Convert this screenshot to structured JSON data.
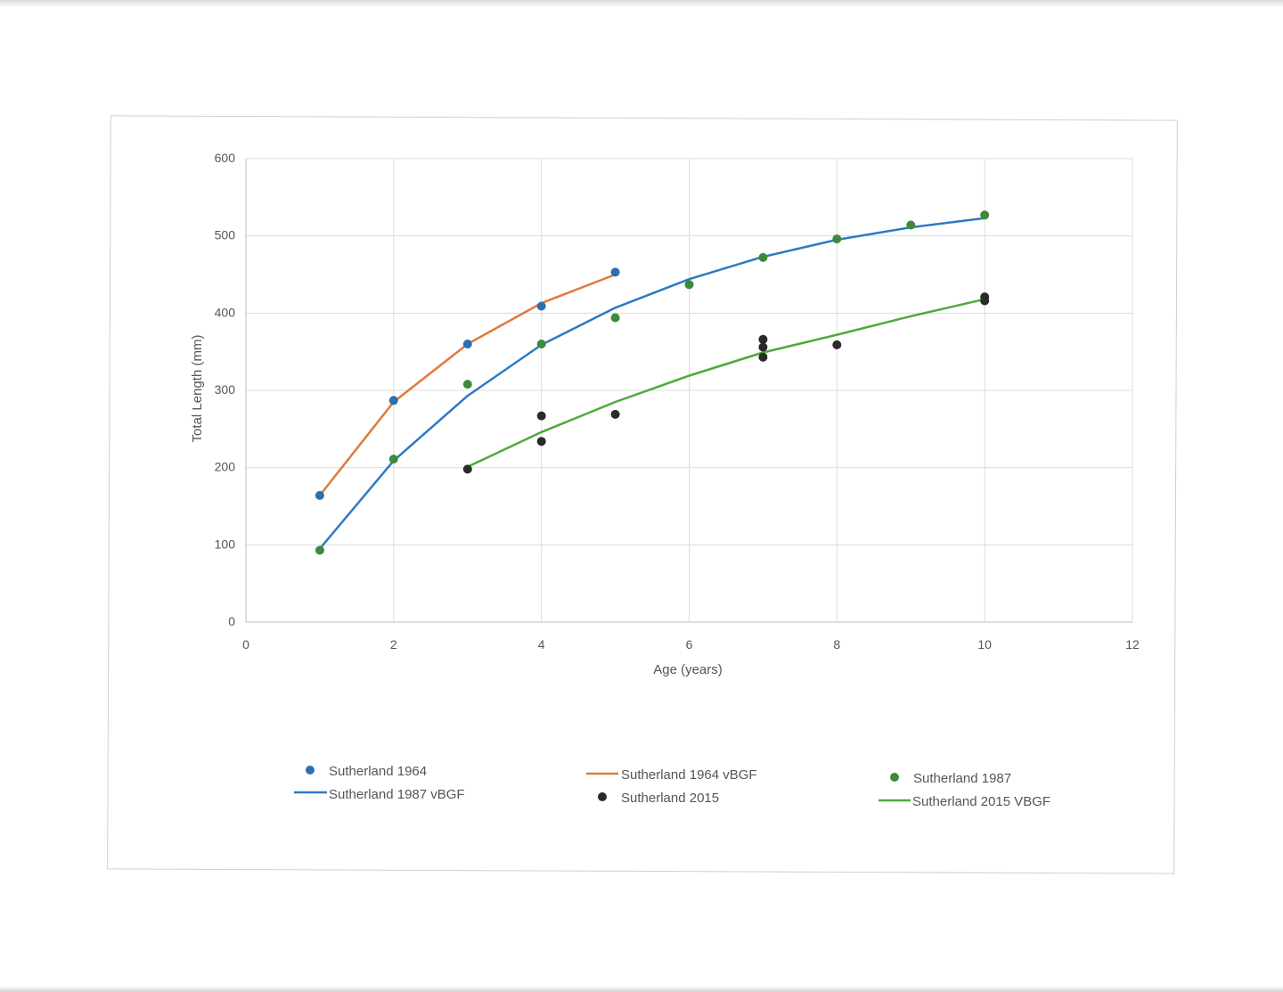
{
  "chart_data": {
    "type": "scatter",
    "title": "",
    "xlabel": "Age (years)",
    "ylabel": "Total Length (mm)",
    "xlim": [
      0,
      12
    ],
    "ylim": [
      0,
      600
    ],
    "x_ticks": [
      "0",
      "2",
      "4",
      "6",
      "8",
      "10",
      "12"
    ],
    "y_ticks": [
      "0",
      "100",
      "200",
      "300",
      "400",
      "500",
      "600"
    ],
    "grid": true,
    "legend_position": "bottom",
    "series": [
      {
        "name": "Sutherland 1964",
        "kind": "scatter",
        "color": "#2e6db0",
        "points": [
          [
            1,
            164
          ],
          [
            2,
            287
          ],
          [
            3,
            360
          ],
          [
            4,
            409
          ],
          [
            5,
            453
          ]
        ]
      },
      {
        "name": "Sutherland 1964 vBGF",
        "kind": "line",
        "color": "#e07a3a",
        "points": [
          [
            1,
            164
          ],
          [
            2,
            285
          ],
          [
            3,
            360
          ],
          [
            4,
            413
          ],
          [
            5,
            450
          ]
        ]
      },
      {
        "name": "Sutherland 1987",
        "kind": "scatter",
        "color": "#3d8a3d",
        "points": [
          [
            1,
            93
          ],
          [
            2,
            211
          ],
          [
            3,
            308
          ],
          [
            4,
            360
          ],
          [
            5,
            394
          ],
          [
            6,
            437
          ],
          [
            7,
            472
          ],
          [
            8,
            496
          ],
          [
            9,
            514
          ],
          [
            10,
            527
          ]
        ]
      },
      {
        "name": "Sutherland 1987 vBGF",
        "kind": "line",
        "color": "#2e7ac4",
        "points": [
          [
            1,
            95
          ],
          [
            2,
            209
          ],
          [
            3,
            293
          ],
          [
            4,
            359
          ],
          [
            5,
            407
          ],
          [
            6,
            444
          ],
          [
            7,
            473
          ],
          [
            8,
            495
          ],
          [
            9,
            511
          ],
          [
            10,
            523
          ]
        ]
      },
      {
        "name": "Sutherland 2015",
        "kind": "scatter",
        "color": "#2a2a2a",
        "points": [
          [
            3,
            198
          ],
          [
            4,
            267
          ],
          [
            4,
            234
          ],
          [
            5,
            269
          ],
          [
            7,
            366
          ],
          [
            7,
            356
          ],
          [
            7,
            343
          ],
          [
            8,
            359
          ],
          [
            10,
            421
          ],
          [
            10,
            416
          ]
        ]
      },
      {
        "name": "Sutherland 2015 VBGF",
        "kind": "line",
        "color": "#4caa3a",
        "points": [
          [
            3,
            201
          ],
          [
            4,
            246
          ],
          [
            5,
            285
          ],
          [
            6,
            319
          ],
          [
            7,
            349
          ],
          [
            8,
            372
          ],
          [
            9,
            396
          ],
          [
            10,
            418
          ]
        ]
      }
    ]
  },
  "legend": [
    {
      "label": "Sutherland 1964",
      "kind": "marker",
      "color": "#2e6db0"
    },
    {
      "label": "Sutherland 1964 vBGF",
      "kind": "line",
      "color": "#e07a3a"
    },
    {
      "label": "Sutherland 1987",
      "kind": "marker",
      "color": "#3d8a3d"
    },
    {
      "label": "Sutherland 1987 vBGF",
      "kind": "line",
      "color": "#2e7ac4"
    },
    {
      "label": "Sutherland 2015",
      "kind": "marker",
      "color": "#2a2a2a"
    },
    {
      "label": "Sutherland 2015 VBGF",
      "kind": "line",
      "color": "#4caa3a"
    }
  ]
}
